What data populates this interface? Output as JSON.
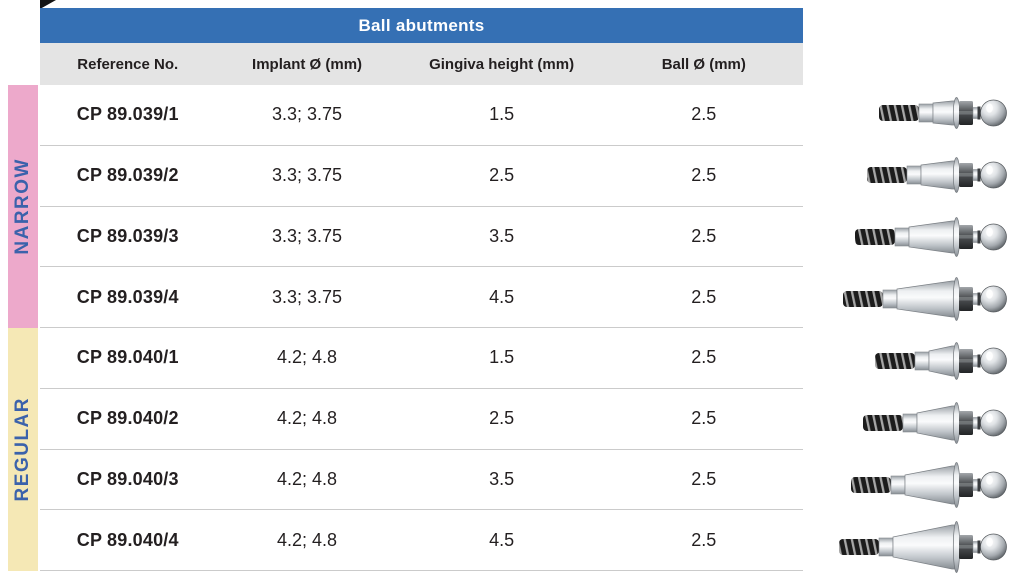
{
  "table": {
    "title": "Ball abutments",
    "columns": [
      "Reference No.",
      "Implant Ø (mm)",
      "Gingiva height (mm)",
      "Ball Ø (mm)"
    ],
    "groups": [
      {
        "label": "NARROW",
        "rows": [
          {
            "reference_no": "CP 89.039/1",
            "implant_diameter_mm": "3.3; 3.75",
            "gingiva_height_mm": "1.5",
            "ball_diameter_mm": "2.5"
          },
          {
            "reference_no": "CP 89.039/2",
            "implant_diameter_mm": "3.3; 3.75",
            "gingiva_height_mm": "2.5",
            "ball_diameter_mm": "2.5"
          },
          {
            "reference_no": "CP 89.039/3",
            "implant_diameter_mm": "3.3; 3.75",
            "gingiva_height_mm": "3.5",
            "ball_diameter_mm": "2.5"
          },
          {
            "reference_no": "CP 89.039/4",
            "implant_diameter_mm": "3.3; 3.75",
            "gingiva_height_mm": "4.5",
            "ball_diameter_mm": "2.5"
          }
        ]
      },
      {
        "label": "REGULAR",
        "rows": [
          {
            "reference_no": "CP 89.040/1",
            "implant_diameter_mm": "4.2; 4.8",
            "gingiva_height_mm": "1.5",
            "ball_diameter_mm": "2.5"
          },
          {
            "reference_no": "CP 89.040/2",
            "implant_diameter_mm": "4.2; 4.8",
            "gingiva_height_mm": "2.5",
            "ball_diameter_mm": "2.5"
          },
          {
            "reference_no": "CP 89.040/3",
            "implant_diameter_mm": "4.2; 4.8",
            "gingiva_height_mm": "3.5",
            "ball_diameter_mm": "2.5"
          },
          {
            "reference_no": "CP 89.040/4",
            "implant_diameter_mm": "4.2; 4.8",
            "gingiva_height_mm": "4.5",
            "ball_diameter_mm": "2.5"
          }
        ]
      }
    ]
  },
  "illustrations": [
    {
      "name": "ball-abutment-photo",
      "platform": "narrow",
      "gingiva_step": 1
    },
    {
      "name": "ball-abutment-photo",
      "platform": "narrow",
      "gingiva_step": 2
    },
    {
      "name": "ball-abutment-photo",
      "platform": "narrow",
      "gingiva_step": 3
    },
    {
      "name": "ball-abutment-photo",
      "platform": "narrow",
      "gingiva_step": 4
    },
    {
      "name": "ball-abutment-photo",
      "platform": "regular",
      "gingiva_step": 1
    },
    {
      "name": "ball-abutment-photo",
      "platform": "regular",
      "gingiva_step": 2
    },
    {
      "name": "ball-abutment-photo",
      "platform": "regular",
      "gingiva_step": 3
    },
    {
      "name": "ball-abutment-photo",
      "platform": "regular",
      "gingiva_step": 4
    }
  ],
  "colors": {
    "title_bar": "#3570b4",
    "title_text": "#ffffff",
    "header_row": "#e4e4e4",
    "narrow_strip": "#eda9cb",
    "regular_strip": "#f5e8b5",
    "group_label_text": "#3b62ab",
    "body_text": "#231f20",
    "row_divider": "#cbcbcb"
  }
}
